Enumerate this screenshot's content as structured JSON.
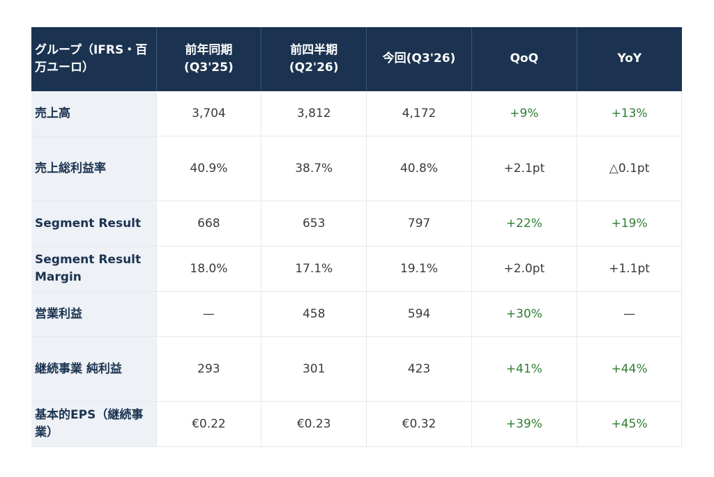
{
  "header": {
    "col0": "グループ（IFRS・百万ユーロ）",
    "col1": "前年同期(Q3'25)",
    "col2": "前四半期(Q2'26)",
    "col3": "今回(Q3'26)",
    "col4": "QoQ",
    "col5": "YoY"
  },
  "rows": [
    {
      "label": "売上高",
      "prev_year": "3,704",
      "prev_q": "3,812",
      "current": "4,172",
      "qoq": "+9%",
      "yoy": "+13%"
    },
    {
      "label": "売上総利益率",
      "prev_year": "40.9%",
      "prev_q": "38.7%",
      "current": "40.8%",
      "qoq": "+2.1pt",
      "yoy": "△0.1pt"
    },
    {
      "label": "Segment Result",
      "prev_year": "668",
      "prev_q": "653",
      "current": "797",
      "qoq": "+22%",
      "yoy": "+19%"
    },
    {
      "label": "Segment Result Margin",
      "prev_year": "18.0%",
      "prev_q": "17.1%",
      "current": "19.1%",
      "qoq": "+2.0pt",
      "yoy": "+1.1pt"
    },
    {
      "label": "営業利益",
      "prev_year": "—",
      "prev_q": "458",
      "current": "594",
      "qoq": "+30%",
      "yoy": "—"
    },
    {
      "label": "継続事業 純利益",
      "prev_year": "293",
      "prev_q": "301",
      "current": "423",
      "qoq": "+41%",
      "yoy": "+44%"
    },
    {
      "label": "基本的EPS（継続事業）",
      "prev_year": "€0.22",
      "prev_q": "€0.23",
      "current": "€0.32",
      "qoq": "+39%",
      "yoy": "+45%"
    }
  ],
  "colors": {
    "header_bg": "#1b3350",
    "rowhead_bg": "#eef1f6",
    "positive": "#2e7d32"
  }
}
